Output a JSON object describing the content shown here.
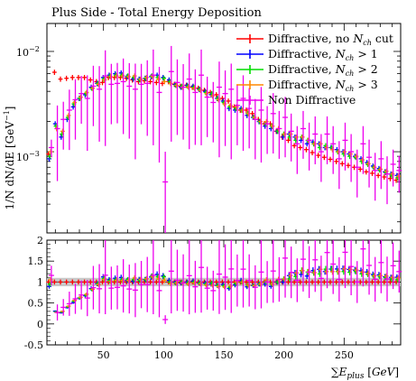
{
  "chart_data": {
    "type": "scatter",
    "title": "Plus Side - Total Energy Deposition",
    "ylabel_html": "1/N dN/dE [GeV<sup>−1</sup>]",
    "ylabel": "1/N, dN/dE [GeV^-1]",
    "xlabel": "∑E_plus [GeV]",
    "xlim": [
      3,
      297
    ],
    "main": {
      "yscale": "log",
      "ylim": [
        0.000155,
        0.019
      ],
      "ytick_labels": [
        "10^-2",
        "10^-3"
      ]
    },
    "ratio": {
      "ylim": [
        -0.5,
        2.0
      ],
      "yticks": [
        -0.5,
        0,
        0.5,
        1,
        1.5,
        2
      ],
      "band": [
        0.9,
        1.1
      ],
      "reference": 1
    },
    "xticks": [
      50,
      100,
      150,
      200,
      250
    ],
    "legend_position": "top-right",
    "series": [
      {
        "name": "Diffractive, no N_ch cut",
        "color": "#ff0000",
        "y": [
          0.00095,
          0.0062,
          0.0053,
          0.0054,
          0.0055,
          0.0055,
          0.0055,
          0.0052,
          0.005,
          0.0049,
          0.0055,
          0.0055,
          0.0055,
          0.0054,
          0.0052,
          0.005,
          0.0051,
          0.005,
          0.0049,
          0.0048,
          0.005,
          0.0047,
          0.0045,
          0.0046,
          0.0044,
          0.0043,
          0.0041,
          0.0039,
          0.0037,
          0.0034,
          0.0032,
          0.0028,
          0.0026,
          0.0026,
          0.0024,
          0.0021,
          0.0019,
          0.0019,
          0.0016,
          0.0014,
          0.0013,
          0.00115,
          0.0011,
          0.00105,
          0.00098,
          0.00092,
          0.00088,
          0.00084,
          0.0008,
          0.00076,
          0.00073,
          0.0007,
          0.00067,
          0.00063,
          0.00061,
          0.00058,
          0.00056,
          0.00054,
          0.00052
        ]
      },
      {
        "name": "Diffractive, N_ch > 1",
        "color": "#0000ff",
        "y": [
          0.00085,
          0.0019,
          0.0014,
          0.0021,
          0.0028,
          0.0034,
          0.0037,
          0.0044,
          0.0048,
          0.0055,
          0.0058,
          0.006,
          0.0061,
          0.0056,
          0.0053,
          0.0053,
          0.0054,
          0.0056,
          0.0058,
          0.0055,
          0.0052,
          0.0047,
          0.0044,
          0.0046,
          0.0045,
          0.0042,
          0.004,
          0.0037,
          0.0034,
          0.0032,
          0.0027,
          0.0026,
          0.0027,
          0.0023,
          0.0022,
          0.002,
          0.0018,
          0.0017,
          0.0016,
          0.0014,
          0.0015,
          0.0014,
          0.0013,
          0.0012,
          0.00125,
          0.0012,
          0.0011,
          0.0011,
          0.00105,
          0.001,
          0.00095,
          0.0009,
          0.00085,
          0.00078,
          0.00072,
          0.00068,
          0.00063,
          0.0006,
          0.00058
        ]
      },
      {
        "name": "Diffractive, N_ch > 2",
        "color": "#00dd00",
        "y": [
          0.0009,
          0.0018,
          0.0015,
          0.0022,
          0.003,
          0.0034,
          0.0038,
          0.0043,
          0.0048,
          0.0053,
          0.0057,
          0.0058,
          0.0058,
          0.0057,
          0.0055,
          0.0052,
          0.0054,
          0.0057,
          0.0055,
          0.0054,
          0.005,
          0.0046,
          0.0045,
          0.0045,
          0.0044,
          0.0042,
          0.0039,
          0.0038,
          0.0034,
          0.0031,
          0.0028,
          0.0027,
          0.0026,
          0.0024,
          0.0022,
          0.002,
          0.0019,
          0.0018,
          0.0016,
          0.0015,
          0.0014,
          0.0013,
          0.0014,
          0.0013,
          0.0012,
          0.0011,
          0.00115,
          0.0011,
          0.001,
          0.00095,
          0.0009,
          0.00088,
          0.0008,
          0.00075,
          0.0007,
          0.00066,
          0.00062,
          0.00058,
          0.00055
        ]
      },
      {
        "name": "Diffractive, N_ch > 3",
        "color": "#ff8800",
        "y": [
          0.001,
          0.0017,
          0.0016,
          0.0023,
          0.0031,
          0.0035,
          0.0039,
          0.0043,
          0.0047,
          0.0052,
          0.0056,
          0.0057,
          0.0057,
          0.0056,
          0.0057,
          0.0053,
          0.0055,
          0.0056,
          0.0053,
          0.005,
          0.0048,
          0.0046,
          0.0044,
          0.0044,
          0.0043,
          0.0041,
          0.0038,
          0.0036,
          0.0033,
          0.003,
          0.0029,
          0.0028,
          0.0026,
          0.0024,
          0.0022,
          0.002,
          0.002,
          0.0018,
          0.0017,
          0.0015,
          0.0015,
          0.0014,
          0.0014,
          0.0013,
          0.0012,
          0.0012,
          0.0011,
          0.00105,
          0.001,
          0.001,
          0.00095,
          0.0009,
          0.00083,
          0.00076,
          0.0007,
          0.00067,
          0.00064,
          0.0006,
          0.00057
        ]
      },
      {
        "name": "Non Diffractive",
        "color": "#ee00ee",
        "y": [
          0.0011,
          0.0017,
          0.0021,
          0.0026,
          0.0033,
          0.0038,
          0.0034,
          0.0045,
          0.0042,
          0.0057,
          0.0047,
          0.0048,
          0.005,
          0.0045,
          0.0042,
          0.0047,
          0.0048,
          0.0058,
          0.0039,
          0.0005,
          0.0063,
          0.0049,
          0.0044,
          0.0053,
          0.0039,
          0.0058,
          0.0035,
          0.0031,
          0.0044,
          0.0038,
          0.0042,
          0.0029,
          0.0034,
          0.0027,
          0.0021,
          0.0026,
          0.0019,
          0.0024,
          0.0017,
          0.0022,
          0.0016,
          0.0012,
          0.0017,
          0.0013,
          0.0015,
          0.001,
          0.0015,
          0.0012,
          0.00085,
          0.0013,
          0.001,
          0.0007,
          0.0012,
          0.00088,
          0.00065,
          0.00085,
          0.0006,
          0.00075,
          0.00065
        ],
        "yerr_frac": [
          0.2,
          0.7,
          0.5,
          0.6,
          0.6,
          0.5,
          0.7,
          0.6,
          0.7,
          0.8,
          0.6,
          0.6,
          0.7,
          0.7,
          0.8,
          0.6,
          0.7,
          0.8,
          0.8,
          1.0,
          0.8,
          0.7,
          0.7,
          0.8,
          0.7,
          0.8,
          0.6,
          0.6,
          0.8,
          0.7,
          0.8,
          0.6,
          0.7,
          0.6,
          0.6,
          0.7,
          0.5,
          0.6,
          0.5,
          0.6,
          0.5,
          0.5,
          0.5,
          0.5,
          0.5,
          0.5,
          0.5,
          0.5,
          0.5,
          0.5,
          0.5,
          0.5,
          0.5,
          0.5,
          0.5,
          0.5,
          0.5,
          0.4,
          0.4
        ]
      }
    ]
  }
}
